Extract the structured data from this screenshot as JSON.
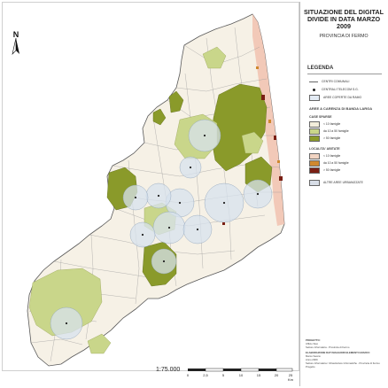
{
  "panel": {
    "title": "SITUAZIONE DEL DIGITAL DIVIDE IN DATA MARZO 2009",
    "subtitle": "PROVINCIA DI FERMO"
  },
  "legend": {
    "heading": "LEGENDA",
    "items": [
      {
        "label": "CENTRI COMUNALI",
        "symbol": "line"
      },
      {
        "label": "CENTRALI TELECOM S.G.",
        "symbol": "dot"
      },
      {
        "label": "AREE COPERTE DA RAMO",
        "symbol": "box",
        "color": "#e3ebf4"
      }
    ],
    "section_title": "AREE A CARENZA DI BANDA LARGA",
    "case_sparse": {
      "title": "CASE SPARSE",
      "items": [
        {
          "label": "< 10 famiglie",
          "color": "#f3eedc"
        },
        {
          "label": "da 10 a 50 famiglie",
          "color": "#c9d68a"
        },
        {
          "label": "> 50 famiglie",
          "color": "#8a9a2a"
        }
      ]
    },
    "localita_abitate": {
      "title": "LOCALITA' ABITATE",
      "items": [
        {
          "label": "< 10 famiglie",
          "color": "#f1d4c2"
        },
        {
          "label": "da 10 a 50 famiglie",
          "color": "#d0882e"
        },
        {
          "label": "> 50 famiglie",
          "color": "#7a1f14"
        }
      ]
    },
    "other": {
      "label": "ALTRE AREE URBANIZZATE",
      "color": "#d7dde6"
    }
  },
  "credits": {
    "line1": "PROGETTO:",
    "line2": "Ufficio Stat.",
    "line3": "Settore Informatica - Provincia di Fermo",
    "line4": "ELABORAZIONE DATI MAGGIORI ELEMENTI GRAFICI:",
    "line5": "Marco Saccio",
    "line6": "Anno 2009",
    "line7": "Settore Informatica / Infrastrutture Informatiche - Provincia di Fermo Progetto"
  },
  "scale": {
    "text": "1:75.000",
    "ticks": [
      "0",
      "2,5",
      "5",
      "10",
      "15",
      "20",
      "25"
    ],
    "unit": "Km"
  },
  "north": {
    "label": "N"
  },
  "icons": {
    "north_arrow": "north-arrow-icon"
  }
}
